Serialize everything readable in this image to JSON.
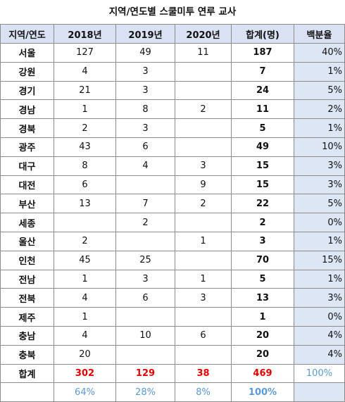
{
  "title": "지역/연도별 스쿨미투 연루 교사",
  "headers": [
    "지역/연도",
    "2018년",
    "2019년",
    "2020년",
    "합계(명)",
    "백분율"
  ],
  "rows": [
    {
      "region": "서울",
      "y2018": "127",
      "y2019": "49",
      "y2020": "11",
      "total": "187",
      "pct": "40%"
    },
    {
      "region": "강원",
      "y2018": "4",
      "y2019": "3",
      "y2020": "",
      "total": "7",
      "pct": "1%"
    },
    {
      "region": "경기",
      "y2018": "21",
      "y2019": "3",
      "y2020": "",
      "total": "24",
      "pct": "5%"
    },
    {
      "region": "경남",
      "y2018": "1",
      "y2019": "8",
      "y2020": "2",
      "total": "11",
      "pct": "2%"
    },
    {
      "region": "경북",
      "y2018": "2",
      "y2019": "3",
      "y2020": "",
      "total": "5",
      "pct": "1%"
    },
    {
      "region": "광주",
      "y2018": "43",
      "y2019": "6",
      "y2020": "",
      "total": "49",
      "pct": "10%"
    },
    {
      "region": "대구",
      "y2018": "8",
      "y2019": "4",
      "y2020": "3",
      "total": "15",
      "pct": "3%"
    },
    {
      "region": "대전",
      "y2018": "6",
      "y2019": "",
      "y2020": "9",
      "total": "15",
      "pct": "3%"
    },
    {
      "region": "부산",
      "y2018": "13",
      "y2019": "7",
      "y2020": "2",
      "total": "22",
      "pct": "5%"
    },
    {
      "region": "세종",
      "y2018": "",
      "y2019": "2",
      "y2020": "",
      "total": "2",
      "pct": "0%"
    },
    {
      "region": "울산",
      "y2018": "2",
      "y2019": "",
      "y2020": "1",
      "total": "3",
      "pct": "1%"
    },
    {
      "region": "인천",
      "y2018": "45",
      "y2019": "25",
      "y2020": "",
      "total": "70",
      "pct": "15%"
    },
    {
      "region": "전남",
      "y2018": "1",
      "y2019": "3",
      "y2020": "1",
      "total": "5",
      "pct": "1%"
    },
    {
      "region": "전북",
      "y2018": "4",
      "y2019": "6",
      "y2020": "3",
      "total": "13",
      "pct": "3%"
    },
    {
      "region": "제주",
      "y2018": "1",
      "y2019": "",
      "y2020": "",
      "total": "1",
      "pct": "0%"
    },
    {
      "region": "충남",
      "y2018": "4",
      "y2019": "10",
      "y2020": "6",
      "total": "20",
      "pct": "4%"
    },
    {
      "region": "충북",
      "y2018": "20",
      "y2019": "",
      "y2020": "",
      "total": "20",
      "pct": "4%"
    }
  ],
  "total_row": {
    "region": "합계",
    "y2018": "302",
    "y2019": "129",
    "y2020": "38",
    "total": "469",
    "pct": "100%"
  },
  "ratio_row": {
    "region": "",
    "y2018": "64%",
    "y2019": "28%",
    "y2020": "8%",
    "total": "100%",
    "pct": ""
  },
  "colors": {
    "header_bg": "#d9e1f2",
    "pct_bg": "#dde6f5",
    "pct_text": "#5b9bd5",
    "total_text": "#e00000",
    "border": "#8c8c8c"
  }
}
